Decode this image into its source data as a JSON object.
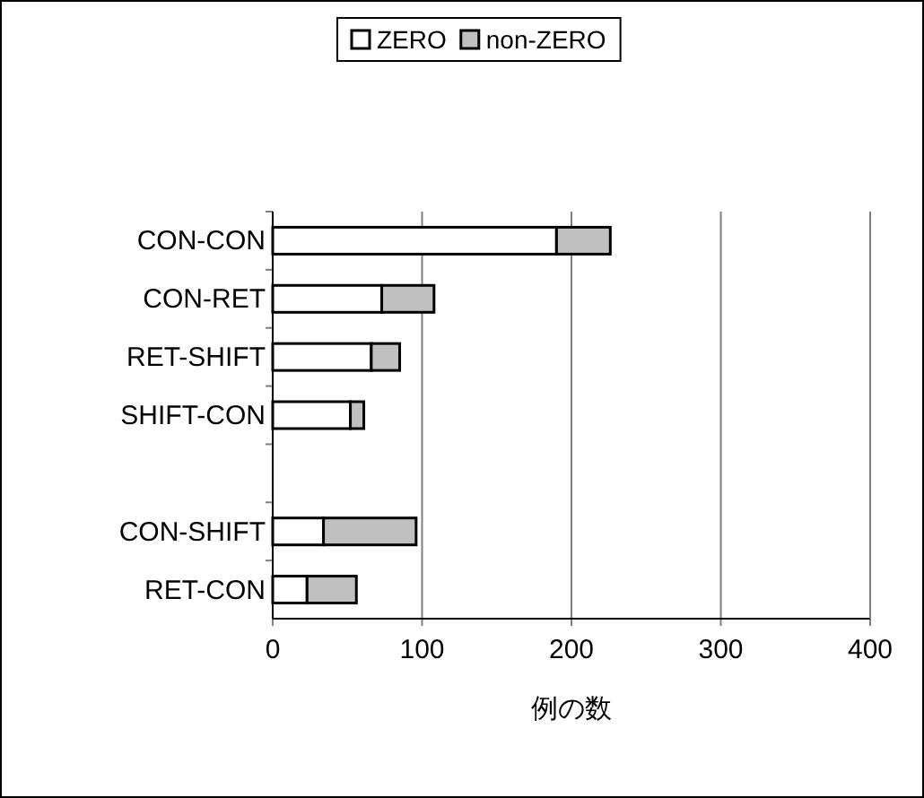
{
  "chart_data": {
    "type": "bar",
    "orientation": "horizontal",
    "stacked": true,
    "categories": [
      "CON-CON",
      "CON-RET",
      "RET-SHIFT",
      "SHIFT-CON",
      null,
      "CON-SHIFT",
      "RET-CON"
    ],
    "series": [
      {
        "name": "ZERO",
        "color": "#ffffff",
        "values": [
          190,
          73,
          66,
          52,
          null,
          34,
          23
        ]
      },
      {
        "name": "non-ZERO",
        "color": "#c0c0c0",
        "values": [
          36,
          35,
          19,
          9,
          null,
          62,
          33
        ]
      }
    ],
    "xlabel": "例の数",
    "xlim": [
      0,
      400
    ],
    "xticks": [
      0,
      100,
      200,
      300,
      400
    ],
    "grid": "x",
    "legend": "top"
  }
}
